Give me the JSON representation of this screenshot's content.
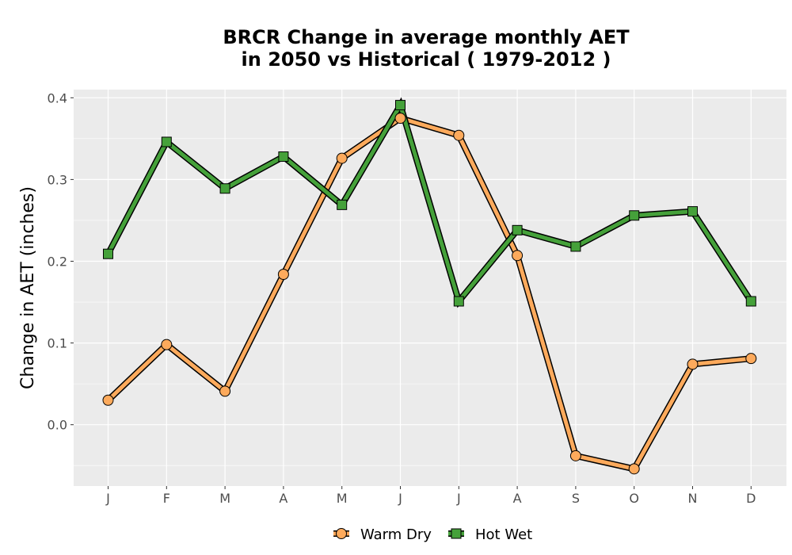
{
  "chart_data": {
    "type": "line",
    "title": [
      "BRCR  Change in average monthly AET",
      "in 2050 vs Historical ( 1979-2012 )"
    ],
    "xlabel": "",
    "ylabel": "Change in AET (inches)",
    "categories": [
      "J",
      "F",
      "M",
      "A",
      "M",
      "J",
      "J",
      "A",
      "S",
      "O",
      "N",
      "D"
    ],
    "yticks": [
      0.0,
      0.1,
      0.2,
      0.3,
      0.4
    ],
    "ytick_labels": [
      "0.0",
      "0.1",
      "0.2",
      "0.3",
      "0.4"
    ],
    "ylim": [
      -0.075,
      0.41
    ],
    "grid": true,
    "legend_position": "bottom",
    "series": [
      {
        "name": "Warm Dry",
        "marker": "circle",
        "color": "#fdaa5c",
        "values": [
          0.03,
          0.098,
          0.041,
          0.184,
          0.326,
          0.375,
          0.354,
          0.207,
          -0.038,
          -0.054,
          0.074,
          0.081
        ]
      },
      {
        "name": "Hot Wet",
        "marker": "square",
        "color": "#45a13a",
        "values": [
          0.209,
          0.346,
          0.289,
          0.328,
          0.269,
          0.391,
          0.151,
          0.238,
          0.218,
          0.256,
          0.261,
          0.151
        ]
      }
    ],
    "colors": {
      "panel_background": "#ebebeb",
      "grid_line": "#ffffff",
      "outline": "#000000",
      "tick_label": "#4d4d4d"
    }
  }
}
